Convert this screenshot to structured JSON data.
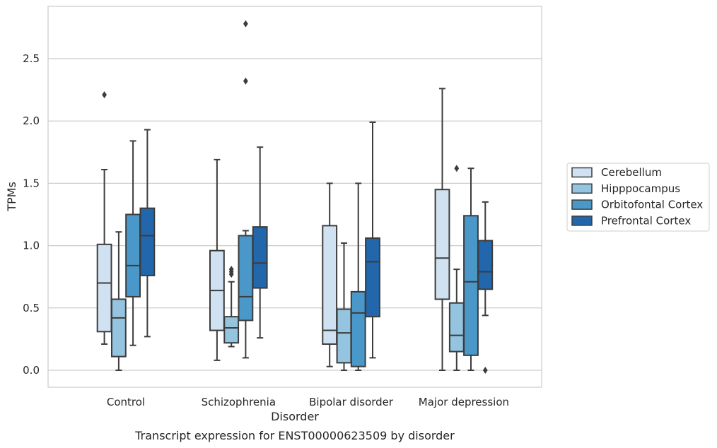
{
  "chart_data": {
    "type": "box",
    "xlabel": "Disorder",
    "ylabel": "TPMs",
    "caption": "Transcript expression for ENST00000623509 by disorder",
    "ylim": [
      -0.13,
      2.92
    ],
    "yticks": [
      "0.0",
      "0.5",
      "1.0",
      "1.5",
      "2.0",
      "2.5"
    ],
    "grid": "horizontal",
    "legend_position": "right",
    "categories": [
      "Control",
      "Schizophrenia",
      "Bipolar disorder",
      "Major depression"
    ],
    "series": [
      {
        "name": "Cerebellum",
        "color": "#d0e1f2",
        "boxes": [
          {
            "whislo": 0.21,
            "q1": 0.31,
            "med": 0.7,
            "q3": 1.01,
            "whishi": 1.61,
            "fliers": [
              2.21
            ]
          },
          {
            "whislo": 0.08,
            "q1": 0.32,
            "med": 0.64,
            "q3": 0.96,
            "whishi": 1.69,
            "fliers": []
          },
          {
            "whislo": 0.03,
            "q1": 0.21,
            "med": 0.32,
            "q3": 1.16,
            "whishi": 1.5,
            "fliers": []
          },
          {
            "whislo": 0.0,
            "q1": 0.57,
            "med": 0.9,
            "q3": 1.45,
            "whishi": 2.26,
            "fliers": []
          }
        ]
      },
      {
        "name": "Hipppocampus",
        "color": "#94c4df",
        "boxes": [
          {
            "whislo": 0.0,
            "q1": 0.11,
            "med": 0.42,
            "q3": 0.57,
            "whishi": 1.11,
            "fliers": []
          },
          {
            "whislo": 0.19,
            "q1": 0.22,
            "med": 0.34,
            "q3": 0.43,
            "whishi": 0.71,
            "fliers": [
              0.77,
              0.79,
              0.81
            ]
          },
          {
            "whislo": 0.0,
            "q1": 0.06,
            "med": 0.3,
            "q3": 0.49,
            "whishi": 1.02,
            "fliers": []
          },
          {
            "whislo": 0.0,
            "q1": 0.15,
            "med": 0.28,
            "q3": 0.54,
            "whishi": 0.81,
            "fliers": [
              1.62
            ]
          }
        ]
      },
      {
        "name": "Orbitofontal Cortex",
        "color": "#4a98c9",
        "boxes": [
          {
            "whislo": 0.2,
            "q1": 0.59,
            "med": 0.84,
            "q3": 1.25,
            "whishi": 1.84,
            "fliers": []
          },
          {
            "whislo": 0.1,
            "q1": 0.4,
            "med": 0.59,
            "q3": 1.08,
            "whishi": 1.12,
            "fliers": [
              2.32,
              2.78
            ]
          },
          {
            "whislo": 0.0,
            "q1": 0.03,
            "med": 0.46,
            "q3": 0.63,
            "whishi": 1.5,
            "fliers": []
          },
          {
            "whislo": 0.0,
            "q1": 0.12,
            "med": 0.71,
            "q3": 1.24,
            "whishi": 1.62,
            "fliers": []
          }
        ]
      },
      {
        "name": "Prefrontal Cortex",
        "color": "#2266ac",
        "boxes": [
          {
            "whislo": 0.27,
            "q1": 0.76,
            "med": 1.08,
            "q3": 1.3,
            "whishi": 1.93,
            "fliers": []
          },
          {
            "whislo": 0.26,
            "q1": 0.66,
            "med": 0.86,
            "q3": 1.15,
            "whishi": 1.79,
            "fliers": []
          },
          {
            "whislo": 0.1,
            "q1": 0.43,
            "med": 0.87,
            "q3": 1.06,
            "whishi": 1.99,
            "fliers": []
          },
          {
            "whislo": 0.44,
            "q1": 0.65,
            "med": 0.79,
            "q3": 1.04,
            "whishi": 1.35,
            "fliers": [
              0.0
            ]
          }
        ]
      }
    ]
  }
}
